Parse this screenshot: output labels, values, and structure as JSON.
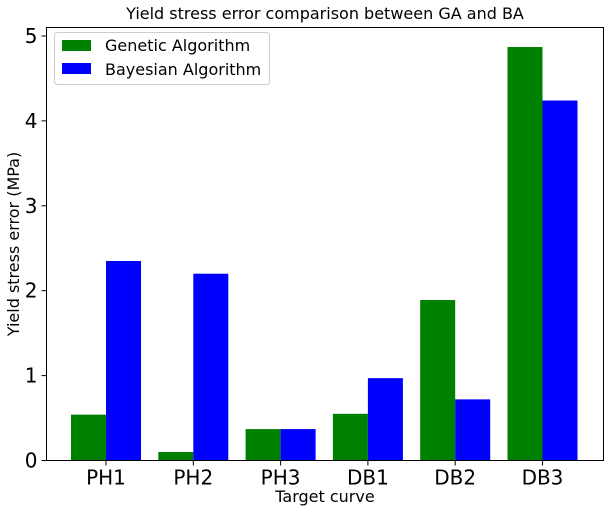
{
  "chart_data": {
    "type": "bar",
    "title": "Yield stress error comparison between GA and BA",
    "xlabel": "Target curve",
    "ylabel": "Yield stress error (MPa)",
    "categories": [
      "PH1",
      "PH2",
      "PH3",
      "DB1",
      "DB2",
      "DB3"
    ],
    "series": [
      {
        "name": "Genetic Algorithm",
        "color": "#008000",
        "values": [
          0.54,
          0.1,
          0.37,
          0.55,
          1.89,
          4.87
        ]
      },
      {
        "name": "Bayesian Algorithm",
        "color": "#0000ff",
        "values": [
          2.35,
          2.2,
          0.37,
          0.97,
          0.72,
          4.24
        ]
      }
    ],
    "ylim": [
      0,
      5.1
    ],
    "yticks": [
      0,
      1,
      2,
      3,
      4,
      5
    ],
    "grid": false,
    "legend": "top-left"
  }
}
